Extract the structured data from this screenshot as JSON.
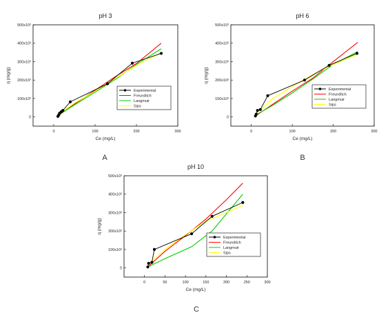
{
  "panel_labels": [
    "A",
    "B",
    "C"
  ],
  "chart_data": [
    {
      "type": "line",
      "title": "pH 3",
      "xlabel": "Ce (mg/L)",
      "ylabel": "q (mg/g)",
      "xlim": [
        -50,
        300
      ],
      "ylim": [
        -50000,
        500000
      ],
      "x_ticks": [
        0,
        100,
        200,
        300
      ],
      "x_tick_labels": [
        "0",
        "100",
        "200",
        "300"
      ],
      "y_ticks": [
        0,
        100000,
        200000,
        300000,
        400000,
        500000
      ],
      "y_tick_labels": [
        "0",
        "100x10³",
        "200x10³",
        "300x10³",
        "400x10³",
        "500x10³"
      ],
      "grid": false,
      "legend_position": "right",
      "series": [
        {
          "name": "Experimental",
          "color": "#000000",
          "marker": "circle",
          "x": [
            10,
            12,
            14,
            18,
            22,
            40,
            130,
            190,
            260
          ],
          "y": [
            3000,
            10000,
            20000,
            28000,
            35000,
            82000,
            180000,
            292000,
            345000
          ]
        },
        {
          "name": "Freundlich",
          "color": "#ff0000",
          "x": [
            10,
            50,
            100,
            150,
            200,
            260
          ],
          "y": [
            5000,
            70000,
            145000,
            220000,
            290000,
            400000
          ]
        },
        {
          "name": "Langmuir",
          "color": "#00cc00",
          "x": [
            10,
            50,
            100,
            150,
            200,
            260
          ],
          "y": [
            8000,
            65000,
            135000,
            205000,
            285000,
            370000
          ]
        },
        {
          "name": "Sips",
          "color": "#ffff00",
          "x": [
            10,
            50,
            100,
            150,
            200,
            260
          ],
          "y": [
            10000,
            75000,
            140000,
            210000,
            280000,
            350000
          ]
        }
      ]
    },
    {
      "type": "line",
      "title": "pH 6",
      "xlabel": "Ce (mg/L)",
      "ylabel": "q (mg/g)",
      "xlim": [
        -50,
        300
      ],
      "ylim": [
        -50000,
        500000
      ],
      "x_ticks": [
        0,
        100,
        200,
        300
      ],
      "x_tick_labels": [
        "0",
        "100",
        "200",
        "300"
      ],
      "y_ticks": [
        0,
        100000,
        200000,
        300000,
        400000,
        500000
      ],
      "y_tick_labels": [
        "0",
        "100x10³",
        "200x10³",
        "300x10³",
        "400x10³",
        "500x10³"
      ],
      "grid": false,
      "legend_position": "right",
      "series": [
        {
          "name": "Experimental",
          "color": "#000000",
          "marker": "circle",
          "x": [
            10,
            12,
            15,
            22,
            40,
            130,
            190,
            258
          ],
          "y": [
            5000,
            15000,
            35000,
            40000,
            115000,
            200000,
            280000,
            345000
          ]
        },
        {
          "name": "Freundlich",
          "color": "#ff0000",
          "x": [
            10,
            50,
            100,
            150,
            200,
            260
          ],
          "y": [
            5000,
            65000,
            140000,
            210000,
            300000,
            405000
          ]
        },
        {
          "name": "Langmuir",
          "color": "#00cc00",
          "x": [
            10,
            50,
            100,
            150,
            200,
            260
          ],
          "y": [
            10000,
            60000,
            130000,
            205000,
            285000,
            355000
          ]
        },
        {
          "name": "Sips",
          "color": "#ffff00",
          "x": [
            10,
            50,
            100,
            150,
            200,
            260
          ],
          "y": [
            15000,
            95000,
            165000,
            230000,
            285000,
            340000
          ]
        }
      ]
    },
    {
      "type": "line",
      "title": "pH 10",
      "xlabel": "Ce (mg/L)",
      "ylabel": "q (mg/g)",
      "xlim": [
        -50,
        300
      ],
      "ylim": [
        -50000,
        500000
      ],
      "x_ticks": [
        0,
        50,
        100,
        150,
        200,
        250,
        300
      ],
      "x_tick_labels": [
        "0",
        "50",
        "100",
        "150",
        "200",
        "250",
        "300"
      ],
      "y_ticks": [
        0,
        100000,
        200000,
        300000,
        400000,
        500000
      ],
      "y_tick_labels": [
        "0",
        "100x10³",
        "200x10³",
        "300x10³",
        "400x10³",
        "500x10³"
      ],
      "grid": false,
      "legend_position": "right",
      "series": [
        {
          "name": "Experimental",
          "color": "#000000",
          "marker": "circle",
          "x": [
            8,
            10,
            18,
            24,
            115,
            165,
            240
          ],
          "y": [
            5000,
            25000,
            30000,
            100000,
            185000,
            280000,
            355000
          ]
        },
        {
          "name": "Freundlich",
          "color": "#ff0000",
          "x": [
            8,
            50,
            100,
            150,
            200,
            240
          ],
          "y": [
            5000,
            90000,
            175000,
            265000,
            370000,
            460000
          ]
        },
        {
          "name": "Langmuir",
          "color": "#00cc00",
          "x": [
            8,
            50,
            115,
            165,
            240
          ],
          "y": [
            5000,
            50000,
            115000,
            200000,
            400000
          ]
        },
        {
          "name": "Sips",
          "color": "#ffff00",
          "x": [
            8,
            50,
            100,
            150,
            200,
            240
          ],
          "y": [
            15000,
            100000,
            180000,
            255000,
            300000,
            340000
          ]
        }
      ]
    }
  ]
}
